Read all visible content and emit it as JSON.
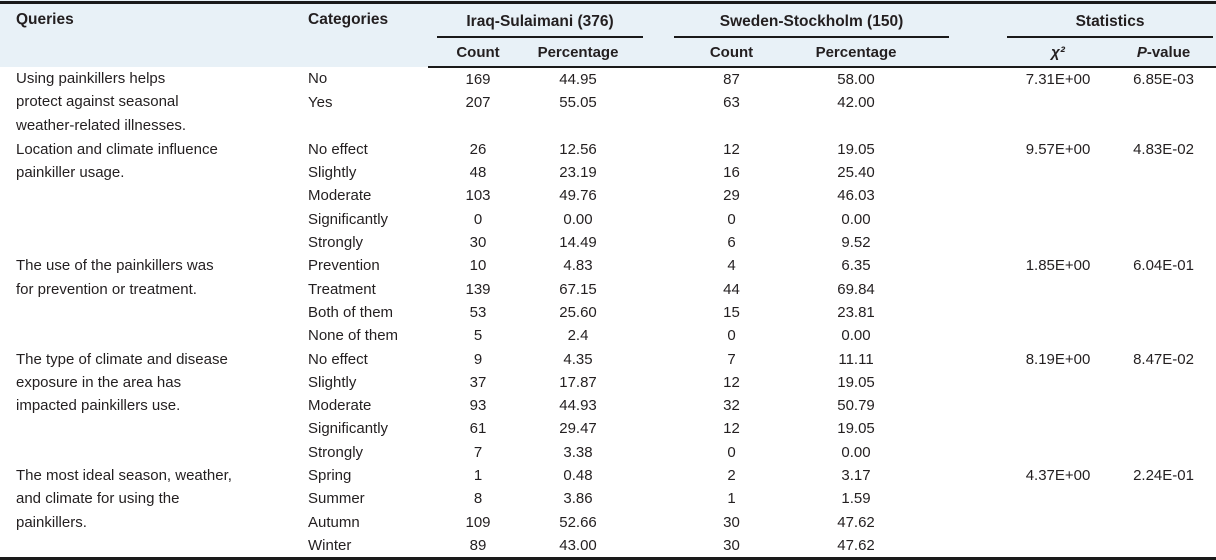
{
  "colors": {
    "header_background": "#e8f1f7",
    "rule_color": "#1a1a1a",
    "text_color": "#231f20",
    "body_background": "#ffffff"
  },
  "header": {
    "queries_label": "Queries",
    "categories_label": "Categories",
    "chi_label": "χ²",
    "p_italic": "P",
    "p_rest": "-value",
    "groups": [
      {
        "label": "Iraq-Sulaimani (376)",
        "sub": [
          "Count",
          "Percentage"
        ]
      },
      {
        "label": "Sweden-Stockholm (150)",
        "sub": [
          "Count",
          "Percentage"
        ]
      },
      {
        "label": "Statistics",
        "sub": [
          "χ²",
          "P-value"
        ]
      }
    ]
  },
  "blocks": [
    {
      "query_lines": [
        "Using painkillers helps",
        "protect against seasonal",
        "weather-related illnesses."
      ],
      "entries": [
        {
          "category": "No",
          "iraq_count": "169",
          "iraq_percentage": "44.95",
          "sweden_count": "87",
          "sweden_percentage": "58.00"
        },
        {
          "category": "Yes",
          "iraq_count": "207",
          "iraq_percentage": "55.05",
          "sweden_count": "63",
          "sweden_percentage": "42.00"
        }
      ],
      "statistics": {
        "chi_square": "7.31E+00",
        "p_value": "6.85E-03"
      }
    },
    {
      "query_lines": [
        "Location and climate influence",
        "painkiller usage."
      ],
      "entries": [
        {
          "category": "No effect",
          "iraq_count": "26",
          "iraq_percentage": "12.56",
          "sweden_count": "12",
          "sweden_percentage": "19.05"
        },
        {
          "category": "Slightly",
          "iraq_count": "48",
          "iraq_percentage": "23.19",
          "sweden_count": "16",
          "sweden_percentage": "25.40"
        },
        {
          "category": "Moderate",
          "iraq_count": "103",
          "iraq_percentage": "49.76",
          "sweden_count": "29",
          "sweden_percentage": "46.03"
        },
        {
          "category": "Significantly",
          "iraq_count": "0",
          "iraq_percentage": "0.00",
          "sweden_count": "0",
          "sweden_percentage": "0.00"
        },
        {
          "category": "Strongly",
          "iraq_count": "30",
          "iraq_percentage": "14.49",
          "sweden_count": "6",
          "sweden_percentage": "9.52"
        }
      ],
      "statistics": {
        "chi_square": "9.57E+00",
        "p_value": "4.83E-02"
      }
    },
    {
      "query_lines": [
        "The use of the painkillers was",
        "for prevention or treatment."
      ],
      "entries": [
        {
          "category": "Prevention",
          "iraq_count": "10",
          "iraq_percentage": "4.83",
          "sweden_count": "4",
          "sweden_percentage": "6.35"
        },
        {
          "category": "Treatment",
          "iraq_count": "139",
          "iraq_percentage": "67.15",
          "sweden_count": "44",
          "sweden_percentage": "69.84"
        },
        {
          "category": "Both of them",
          "iraq_count": "53",
          "iraq_percentage": "25.60",
          "sweden_count": "15",
          "sweden_percentage": "23.81"
        },
        {
          "category": "None of them",
          "iraq_count": "5",
          "iraq_percentage": "2.4",
          "sweden_count": "0",
          "sweden_percentage": "0.00"
        }
      ],
      "statistics": {
        "chi_square": "1.85E+00",
        "p_value": "6.04E-01"
      }
    },
    {
      "query_lines": [
        "The type of climate and disease",
        "exposure in the area has",
        "impacted painkillers use."
      ],
      "entries": [
        {
          "category": "No effect",
          "iraq_count": "9",
          "iraq_percentage": "4.35",
          "sweden_count": "7",
          "sweden_percentage": "11.11"
        },
        {
          "category": "Slightly",
          "iraq_count": "37",
          "iraq_percentage": "17.87",
          "sweden_count": "12",
          "sweden_percentage": "19.05"
        },
        {
          "category": "Moderate",
          "iraq_count": "93",
          "iraq_percentage": "44.93",
          "sweden_count": "32",
          "sweden_percentage": "50.79"
        },
        {
          "category": "Significantly",
          "iraq_count": "61",
          "iraq_percentage": "29.47",
          "sweden_count": "12",
          "sweden_percentage": "19.05"
        },
        {
          "category": "Strongly",
          "iraq_count": "7",
          "iraq_percentage": "3.38",
          "sweden_count": "0",
          "sweden_percentage": "0.00"
        }
      ],
      "statistics": {
        "chi_square": "8.19E+00",
        "p_value": "8.47E-02"
      }
    },
    {
      "query_lines": [
        "The most ideal season, weather,",
        "and climate for using the",
        "painkillers."
      ],
      "entries": [
        {
          "category": "Spring",
          "iraq_count": "1",
          "iraq_percentage": "0.48",
          "sweden_count": "2",
          "sweden_percentage": "3.17"
        },
        {
          "category": "Summer",
          "iraq_count": "8",
          "iraq_percentage": "3.86",
          "sweden_count": "1",
          "sweden_percentage": "1.59"
        },
        {
          "category": "Autumn",
          "iraq_count": "109",
          "iraq_percentage": "52.66",
          "sweden_count": "30",
          "sweden_percentage": "47.62"
        },
        {
          "category": "Winter",
          "iraq_count": "89",
          "iraq_percentage": "43.00",
          "sweden_count": "30",
          "sweden_percentage": "47.62"
        }
      ],
      "statistics": {
        "chi_square": "4.37E+00",
        "p_value": "2.24E-01"
      }
    }
  ]
}
